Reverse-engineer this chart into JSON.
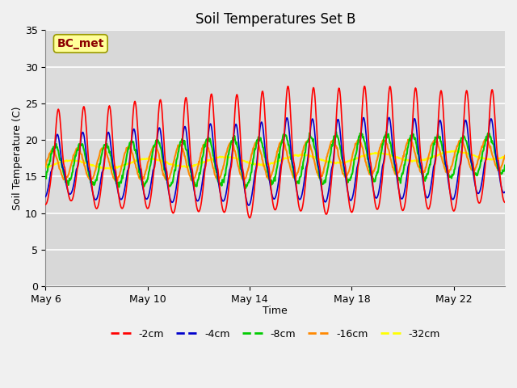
{
  "title": "Soil Temperatures Set B",
  "xlabel": "Time",
  "ylabel": "Soil Temperature (C)",
  "annotation": "BC_met",
  "ylim": [
    0,
    35
  ],
  "yticks": [
    0,
    5,
    10,
    15,
    20,
    25,
    30,
    35
  ],
  "line_colors": {
    "-2cm": "#ff0000",
    "-4cm": "#0000cc",
    "-8cm": "#00cc00",
    "-16cm": "#ff8800",
    "-32cm": "#ffff00"
  },
  "background_inner": "#d8d8d8",
  "background_outer": "#f0f0f0",
  "grid_color": "#ffffff",
  "band_light": "#e8e8e8",
  "xtick_labels": [
    "May 6",
    "May 10",
    "May 14",
    "May 18",
    "May 22"
  ],
  "xtick_positions": [
    0,
    4,
    8,
    12,
    16
  ],
  "n_days": 18,
  "samples_per_day": 48
}
